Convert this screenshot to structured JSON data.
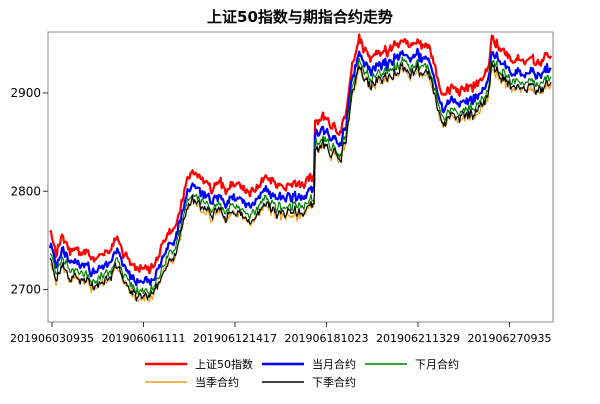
{
  "chart_data": {
    "type": "line",
    "title": "上证50指数与期指合约走势",
    "xlabel": "",
    "ylabel": "",
    "ylim": [
      2667,
      2962
    ],
    "yticks": [
      2700,
      2800,
      2900
    ],
    "xtick_labels": [
      "201906030935",
      "201906061111",
      "201906121417",
      "201906181023",
      "201906211329",
      "201906270935"
    ],
    "grid": false,
    "legend_placement": "bottom",
    "x_points": 500,
    "anchors": [
      [
        0,
        2745
      ],
      [
        6,
        2725
      ],
      [
        12,
        2740
      ],
      [
        20,
        2728
      ],
      [
        30,
        2722
      ],
      [
        45,
        2718
      ],
      [
        58,
        2727
      ],
      [
        66,
        2738
      ],
      [
        72,
        2728
      ],
      [
        80,
        2715
      ],
      [
        86,
        2708
      ],
      [
        92,
        2712
      ],
      [
        100,
        2710
      ],
      [
        108,
        2720
      ],
      [
        112,
        2732
      ],
      [
        118,
        2745
      ],
      [
        122,
        2742
      ],
      [
        130,
        2775
      ],
      [
        138,
        2800
      ],
      [
        145,
        2807
      ],
      [
        152,
        2796
      ],
      [
        160,
        2790
      ],
      [
        168,
        2795
      ],
      [
        176,
        2788
      ],
      [
        182,
        2793
      ],
      [
        190,
        2788
      ],
      [
        198,
        2785
      ],
      [
        206,
        2790
      ],
      [
        214,
        2800
      ],
      [
        222,
        2796
      ],
      [
        230,
        2790
      ],
      [
        238,
        2795
      ],
      [
        246,
        2792
      ],
      [
        254,
        2796
      ],
      [
        260,
        2800
      ],
      [
        263,
        2803
      ],
      [
        264,
        2860
      ],
      [
        272,
        2860
      ],
      [
        282,
        2853
      ],
      [
        290,
        2848
      ],
      [
        295,
        2872
      ],
      [
        302,
        2920
      ],
      [
        308,
        2940
      ],
      [
        314,
        2930
      ],
      [
        320,
        2922
      ],
      [
        326,
        2930
      ],
      [
        334,
        2926
      ],
      [
        342,
        2935
      ],
      [
        350,
        2942
      ],
      [
        358,
        2935
      ],
      [
        366,
        2938
      ],
      [
        372,
        2935
      ],
      [
        380,
        2925
      ],
      [
        388,
        2895
      ],
      [
        392,
        2882
      ],
      [
        396,
        2890
      ],
      [
        404,
        2894
      ],
      [
        414,
        2892
      ],
      [
        424,
        2895
      ],
      [
        430,
        2900
      ],
      [
        436,
        2908
      ],
      [
        440,
        2940
      ],
      [
        446,
        2935
      ],
      [
        454,
        2928
      ],
      [
        462,
        2922
      ],
      [
        470,
        2925
      ],
      [
        478,
        2920
      ],
      [
        486,
        2916
      ],
      [
        492,
        2922
      ],
      [
        499,
        2925
      ]
    ],
    "series": [
      {
        "name": "上证50指数",
        "color": "#ff0000",
        "width": 2.2,
        "offset": 13,
        "jitter": 3.0,
        "seed": 11
      },
      {
        "name": "当月合约",
        "color": "#0000ff",
        "width": 2.2,
        "offset": 0,
        "jitter": 3.0,
        "seed": 23
      },
      {
        "name": "下月合约",
        "color": "#008000",
        "width": 1.2,
        "offset": -9,
        "jitter": 3.2,
        "seed": 37
      },
      {
        "name": "当季合约",
        "color": "#e6a01e",
        "width": 1.2,
        "offset": -17,
        "jitter": 3.4,
        "seed": 51
      },
      {
        "name": "下季合约",
        "color": "#000000",
        "width": 1.2,
        "offset": -15,
        "jitter": 3.4,
        "seed": 67
      }
    ]
  }
}
